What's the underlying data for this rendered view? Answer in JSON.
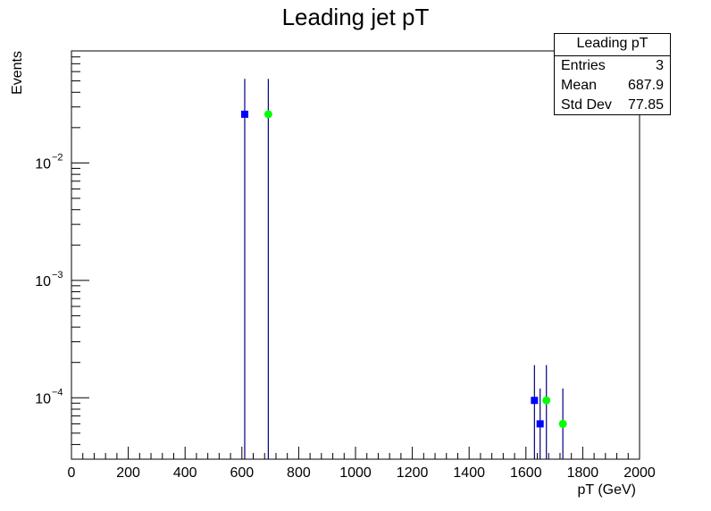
{
  "chart_data": {
    "type": "scatter",
    "title": "Leading jet pT",
    "xlabel": "pT (GeV)",
    "ylabel": "Events",
    "xlim": [
      0,
      2000
    ],
    "ylim": [
      3e-05,
      0.09
    ],
    "yscale": "log",
    "grid": false,
    "x_ticks": [
      0,
      200,
      400,
      600,
      800,
      1000,
      1200,
      1400,
      1600,
      1800,
      2000
    ],
    "x_tick_labels": [
      "0",
      "200",
      "400",
      "600",
      "800",
      "1000",
      "1200",
      "1400",
      "1600",
      "1800",
      "2000"
    ],
    "y_ticks": [
      0.0001,
      0.001,
      0.01
    ],
    "y_tick_labels": [
      {
        "base": "10",
        "exp": "−4"
      },
      {
        "base": "10",
        "exp": "−3"
      },
      {
        "base": "10",
        "exp": "−2"
      }
    ],
    "series": [
      {
        "color": "#0000ff",
        "marker": "square",
        "points": [
          {
            "x": 610,
            "y": 0.026,
            "yerr_high": 0.052
          },
          {
            "x": 1630,
            "y": 9.5e-05,
            "yerr_high": 0.00019
          },
          {
            "x": 1650,
            "y": 6e-05,
            "yerr_high": 0.00012
          }
        ]
      },
      {
        "color": "#00ff00",
        "marker": "circle",
        "points": [
          {
            "x": 693,
            "y": 0.026,
            "yerr_high": 0.052
          },
          {
            "x": 1672,
            "y": 9.5e-05,
            "yerr_high": 0.00019
          },
          {
            "x": 1730,
            "y": 6e-05,
            "yerr_high": 0.00012
          }
        ]
      }
    ],
    "stats_box": {
      "title": "Leading pT",
      "rows": [
        {
          "label": "Entries",
          "value": "3"
        },
        {
          "label": "Mean",
          "value": "687.9"
        },
        {
          "label": "Std Dev",
          "value": "77.85"
        }
      ]
    },
    "error_bar_color": "#000080"
  }
}
